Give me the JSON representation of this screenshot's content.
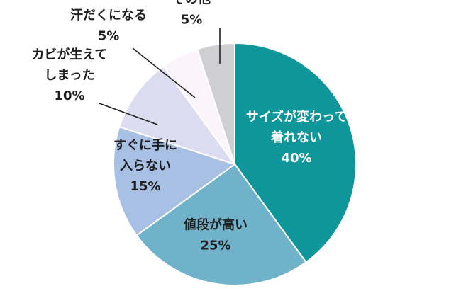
{
  "chart_data": {
    "type": "pie",
    "title": "",
    "slices": [
      {
        "label": "サイズが変わって着れない",
        "lines": [
          "サイズが変わって",
          "着れない"
        ],
        "value": 40,
        "pct": "40%",
        "color": "#0f969a",
        "text_color": "#ffffff"
      },
      {
        "label": "値段が高い",
        "lines": [
          "値段が高い"
        ],
        "value": 25,
        "pct": "25%",
        "color": "#6fb2c9",
        "text_color": "#1f1f1f"
      },
      {
        "label": "すぐに手に入らない",
        "lines": [
          "すぐに手に",
          "入らない"
        ],
        "value": 15,
        "pct": "15%",
        "color": "#a8c0e4",
        "text_color": "#1f1f1f"
      },
      {
        "label": "カビが生えてしまった",
        "lines": [
          "カビが生えて",
          "しまった"
        ],
        "value": 10,
        "pct": "10%",
        "color": "#dcdcf0",
        "text_color": "#1f1f1f"
      },
      {
        "label": "汗だくになる",
        "lines": [
          "汗だくになる"
        ],
        "value": 5,
        "pct": "5%",
        "color": "#fbf4fb",
        "text_color": "#1f1f1f"
      },
      {
        "label": "その他",
        "lines": [
          "その他"
        ],
        "value": 5,
        "pct": "5%",
        "color": "#cfcfd2",
        "text_color": "#1f1f1f"
      }
    ]
  }
}
